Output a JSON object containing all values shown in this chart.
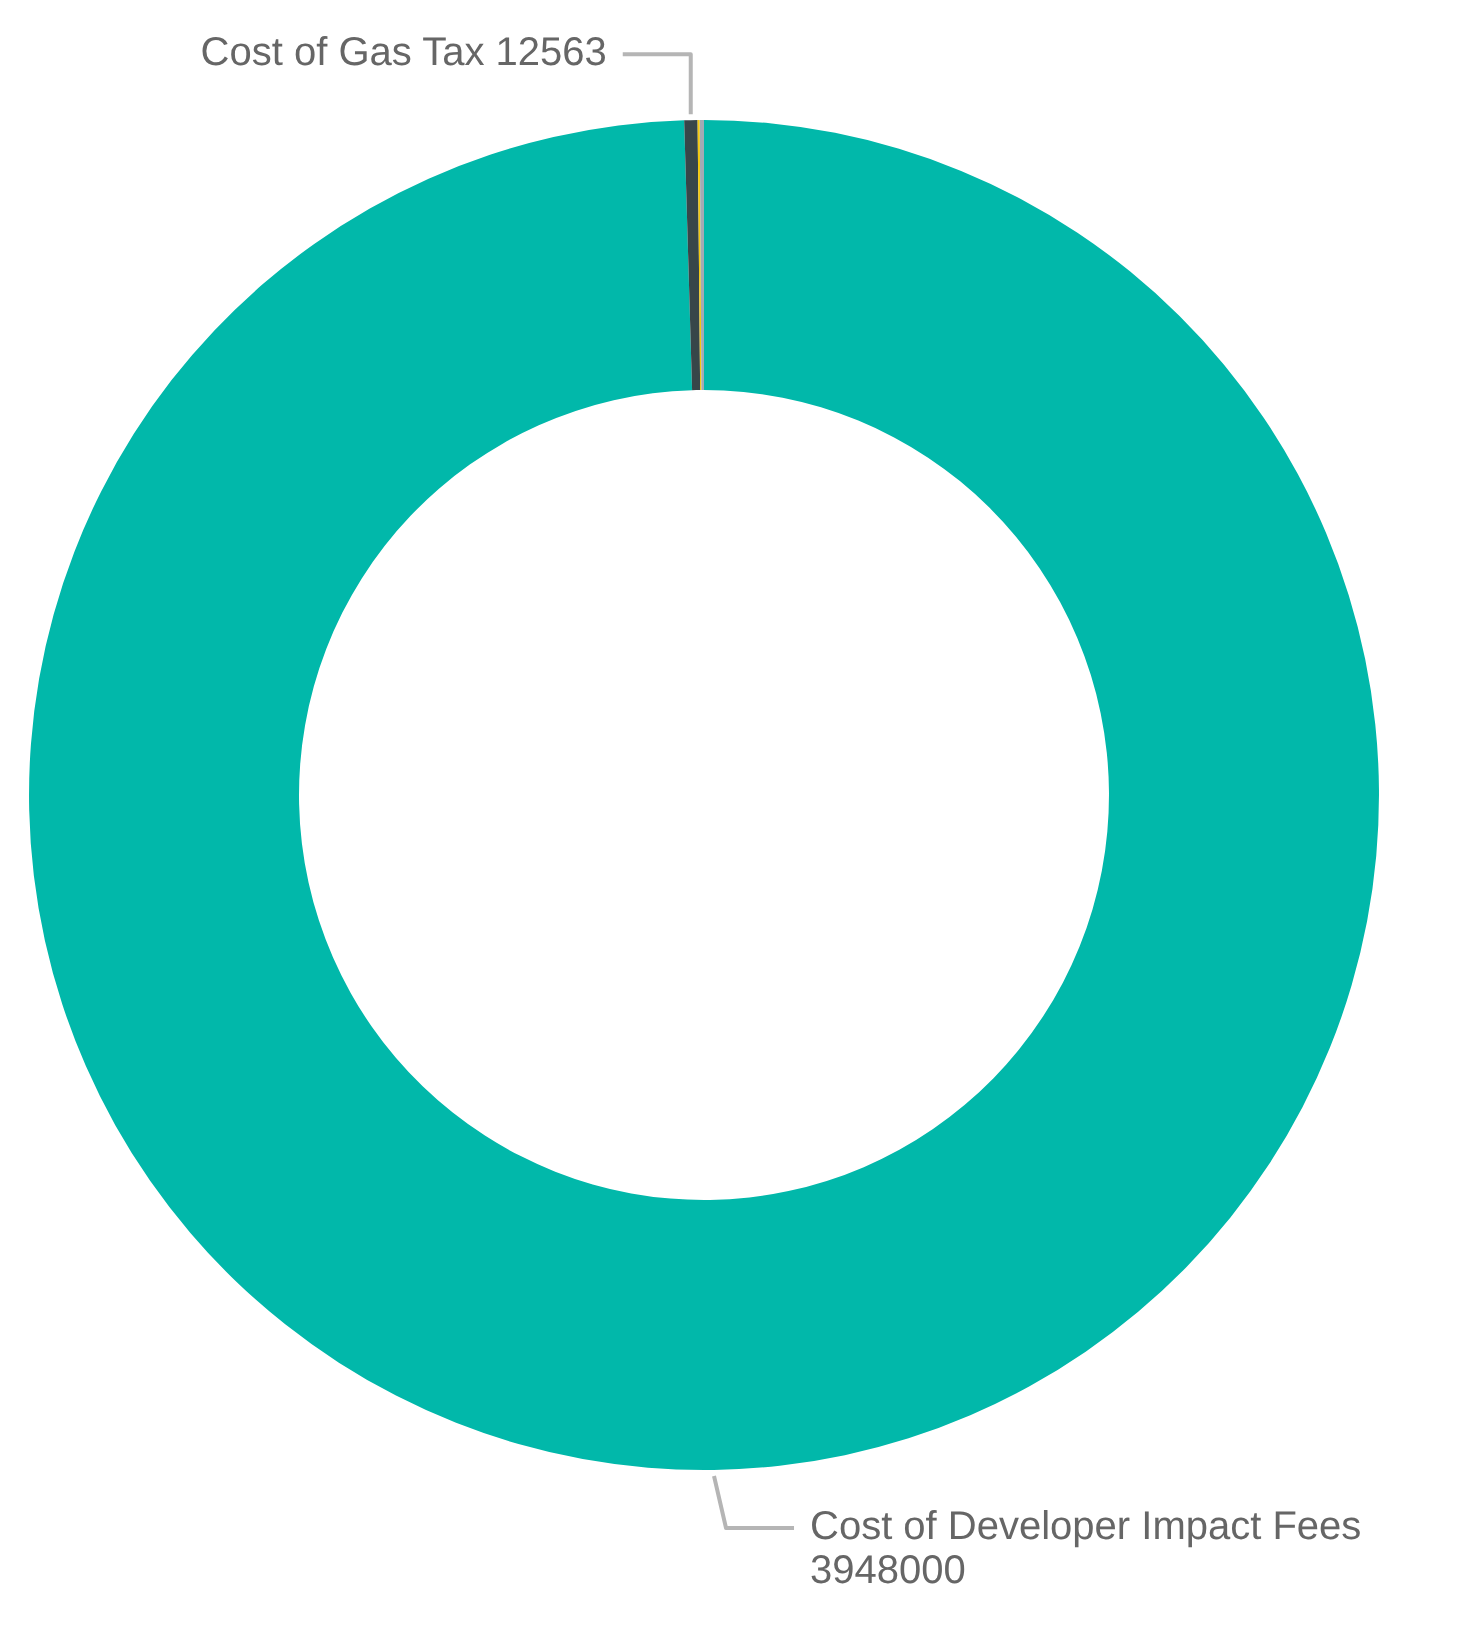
{
  "chart_data": {
    "type": "donut",
    "categories": [
      "Cost of Developer Impact Fees",
      "Cost of Gas Tax",
      null,
      null
    ],
    "values": [
      3948000,
      12563,
      2000,
      4000
    ],
    "value_labels": [
      "3948000",
      "12563",
      null,
      null
    ],
    "colors": [
      "#01b8aa",
      "#374649",
      "#f2c80f",
      "#a3aab4"
    ],
    "legend": false
  }
}
